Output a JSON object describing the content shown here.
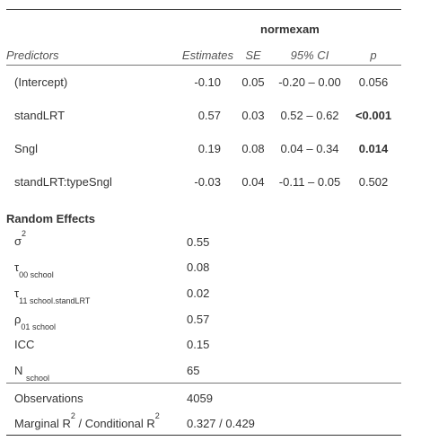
{
  "header": {
    "dependent_var": "normexam",
    "col_predictors": "Predictors",
    "col_estimates": "Estimates",
    "col_se": "SE",
    "col_ci": "95% CI",
    "col_p": "p"
  },
  "fixed_effects": [
    {
      "predictor": "(Intercept)",
      "estimate": "-0.10",
      "se": "0.05",
      "ci": "-0.20 – 0.00",
      "p": "0.056",
      "p_bold": false
    },
    {
      "predictor": "standLRT",
      "estimate": "0.57",
      "se": "0.03",
      "ci": "0.52 – 0.62",
      "p": "<0.001",
      "p_bold": true
    },
    {
      "predictor": "Sngl",
      "estimate": "0.19",
      "se": "0.08",
      "ci": "0.04 – 0.34",
      "p": "0.014",
      "p_bold": true
    },
    {
      "predictor": "standLRT:typeSngl",
      "estimate": "-0.03",
      "se": "0.04",
      "ci": "-0.11 – 0.05",
      "p": "0.502",
      "p_bold": false
    }
  ],
  "random_effects": {
    "title": "Random Effects",
    "sigma2": {
      "symbol": "σ",
      "sup": "2",
      "value": "0.55"
    },
    "tau00": {
      "symbol": "τ",
      "sub1": "00",
      "sub2": "school",
      "value": "0.08"
    },
    "tau11": {
      "symbol": "τ",
      "sub1": "11",
      "sub2": "school.standLRT",
      "value": "0.02"
    },
    "rho01": {
      "symbol": "ρ",
      "sub1": "01",
      "sub2": "school",
      "value": "0.57"
    },
    "icc": {
      "label": "ICC",
      "value": "0.15"
    },
    "n": {
      "label": "N",
      "sub": "school",
      "value": "65"
    }
  },
  "observations": {
    "label": "Observations",
    "value": "4059"
  },
  "r2": {
    "label_a": "Marginal R",
    "sup_a": "2",
    "label_b": " / Conditional R",
    "sup_b": "2",
    "value": "0.327 / 0.429"
  }
}
